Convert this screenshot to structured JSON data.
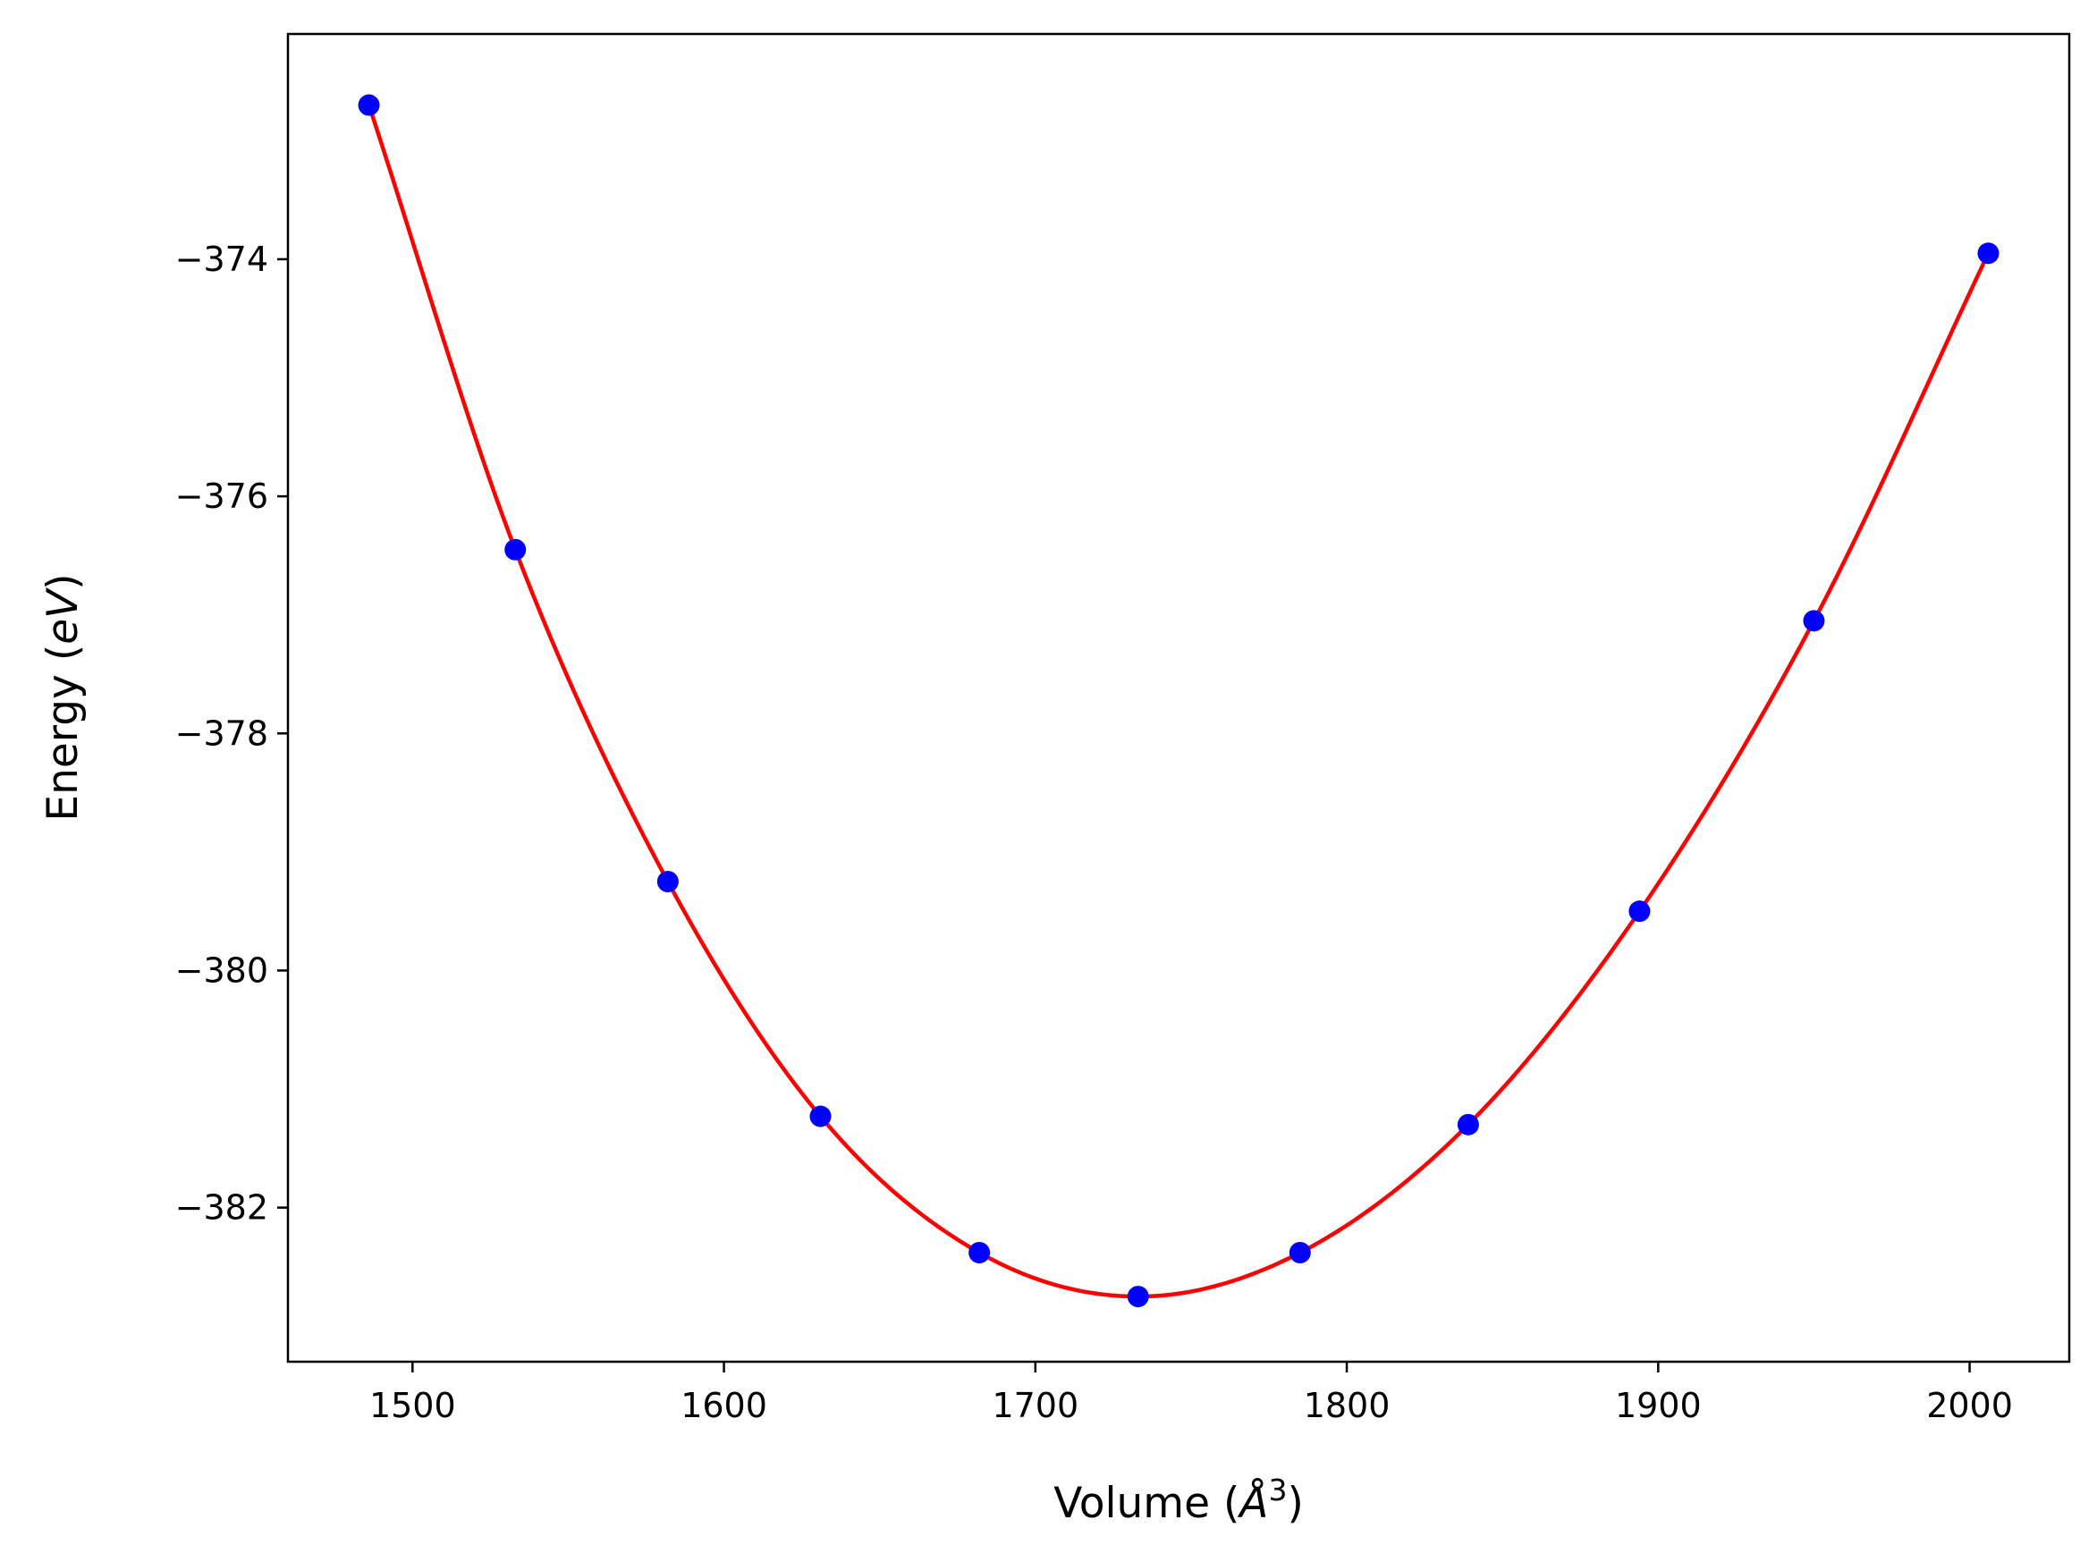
{
  "chart_data": {
    "type": "scatter",
    "title": "",
    "xlabel": {
      "prefix": "Volume (",
      "symbol": "Å",
      "exponent": "3",
      "suffix": ")"
    },
    "ylabel": {
      "prefix": "Energy (",
      "symbol": "eV",
      "suffix": ")"
    },
    "xlim": [
      1460,
      2032
    ],
    "ylim": [
      -383.3,
      -372.1
    ],
    "xticks": [
      1500,
      1600,
      1700,
      1800,
      1900,
      2000
    ],
    "xtick_labels": [
      "1500",
      "1600",
      "1700",
      "1800",
      "1900",
      "2000"
    ],
    "yticks": [
      -374,
      -376,
      -378,
      -380,
      -382
    ],
    "ytick_labels": [
      "−374",
      "−376",
      "−378",
      "−380",
      "−382"
    ],
    "grid": false,
    "series": [
      {
        "role": "data points",
        "color": "#0000ff",
        "x": [
          1486,
          1533,
          1582,
          1631,
          1682,
          1733,
          1785,
          1839,
          1894,
          1950,
          2006
        ],
        "y": [
          -372.7,
          -376.45,
          -379.25,
          -381.23,
          -382.38,
          -382.75,
          -382.38,
          -381.3,
          -379.5,
          -377.05,
          -373.95
        ]
      },
      {
        "role": "fit curve",
        "color": "#ff0000",
        "x": [
          1486,
          1533,
          1582,
          1631,
          1682,
          1733,
          1785,
          1839,
          1894,
          1950,
          2006
        ],
        "y": [
          -372.7,
          -376.45,
          -379.25,
          -381.23,
          -382.38,
          -382.75,
          -382.38,
          -381.3,
          -379.5,
          -377.05,
          -373.95
        ]
      }
    ]
  }
}
